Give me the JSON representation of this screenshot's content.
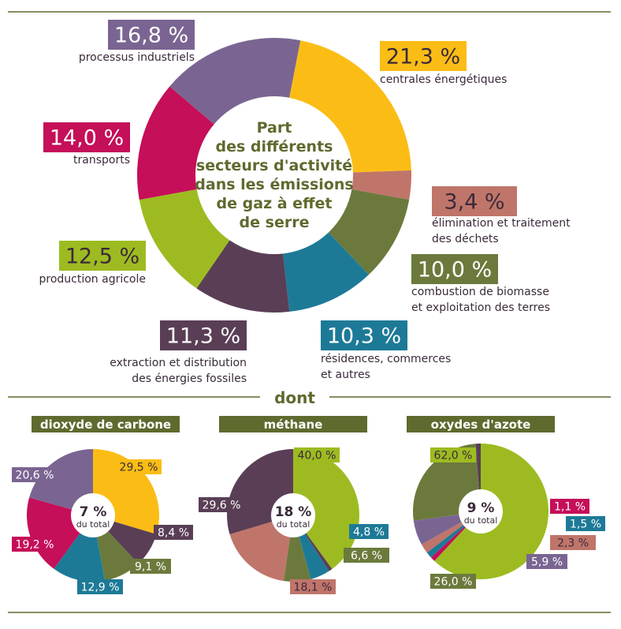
{
  "colors": {
    "industrial": "#7a6592",
    "power": "#fbbd15",
    "waste": "#c0756a",
    "biomass": "#6b7a3c",
    "residential": "#1d7a97",
    "fossil": "#5a3e56",
    "agri": "#9dbb21",
    "transport": "#c50f58",
    "dark": "#5a3e56",
    "olive_text": "#5e6a2e",
    "header_bg": "#5e6a2e",
    "rule": "#5e6a2e"
  },
  "dont_label": "dont",
  "chart_data": [
    {
      "type": "donut",
      "title": "Part des différents secteurs d'activité dans les émissions de gaz à effet de serre",
      "title_lines": [
        "Part",
        "des différents",
        "secteurs d'activité",
        "dans les émissions",
        "de gaz à effet",
        "de serre"
      ],
      "unit": "%",
      "slices": [
        {
          "key": "power",
          "value": 21.3,
          "pct": "21,3 %",
          "label_lines": [
            "centrales énergétiques"
          ],
          "color": "#fbbd15",
          "text_color": "#3a2a3a"
        },
        {
          "key": "waste",
          "value": 3.4,
          "pct": "3,4 %",
          "label_lines": [
            "élimination et traitement",
            "des déchets"
          ],
          "color": "#c0756a",
          "text_color": "#3a2a3a"
        },
        {
          "key": "biomass",
          "value": 10.0,
          "pct": "10,0 %",
          "label_lines": [
            "combustion de biomasse",
            "et exploitation des terres"
          ],
          "color": "#6b7a3c",
          "text_color": "#ffffff"
        },
        {
          "key": "residential",
          "value": 10.3,
          "pct": "10,3 %",
          "label_lines": [
            "résidences, commerces",
            "et autres"
          ],
          "color": "#1d7a97",
          "text_color": "#ffffff"
        },
        {
          "key": "fossil",
          "value": 11.3,
          "pct": "11,3 %",
          "label_lines": [
            "extraction et distribution",
            "des énergies fossiles"
          ],
          "color": "#5a3e56",
          "text_color": "#ffffff"
        },
        {
          "key": "agri",
          "value": 12.5,
          "pct": "12,5 %",
          "label_lines": [
            "production agricole"
          ],
          "color": "#9dbb21",
          "text_color": "#3a2a3a"
        },
        {
          "key": "transport",
          "value": 14.0,
          "pct": "14,0 %",
          "label_lines": [
            "transports"
          ],
          "color": "#c50f58",
          "text_color": "#ffffff"
        },
        {
          "key": "industrial",
          "value": 16.8,
          "pct": "16,8 %",
          "label_lines": [
            "processus industriels"
          ],
          "color": "#7a6592",
          "text_color": "#ffffff"
        }
      ]
    },
    {
      "type": "pie",
      "title": "dioxyde de carbone",
      "center_pct": "7 %",
      "center_sub": "du total",
      "slices": [
        {
          "value": 29.5,
          "pct": "29,5 %",
          "color": "#fbbd15",
          "text_color": "#3a2a3a"
        },
        {
          "value": 8.4,
          "pct": "8,4 %",
          "color": "#5a3e56",
          "text_color": "#ffffff"
        },
        {
          "value": 9.1,
          "pct": "9,1 %",
          "color": "#6b7a3c",
          "text_color": "#ffffff"
        },
        {
          "value": 12.9,
          "pct": "12,9 %",
          "color": "#1d7a97",
          "text_color": "#ffffff"
        },
        {
          "value": 19.2,
          "pct": "19,2 %",
          "color": "#c50f58",
          "text_color": "#ffffff"
        },
        {
          "value": 20.6,
          "pct": "20,6 %",
          "color": "#7a6592",
          "text_color": "#ffffff"
        }
      ]
    },
    {
      "type": "pie",
      "title": "méthane",
      "center_pct": "18 %",
      "center_sub": "du total",
      "slices": [
        {
          "value": 40.0,
          "pct": "40,0 %",
          "color": "#9dbb21",
          "text_color": "#3a2a3a"
        },
        {
          "value": 0.9,
          "pct": "",
          "color": "#5a3e56",
          "text_color": "#ffffff"
        },
        {
          "value": 4.8,
          "pct": "4,8 %",
          "color": "#1d7a97",
          "text_color": "#ffffff"
        },
        {
          "value": 6.6,
          "pct": "6,6 %",
          "color": "#6b7a3c",
          "text_color": "#ffffff"
        },
        {
          "value": 18.1,
          "pct": "18,1 %",
          "color": "#c0756a",
          "text_color": "#3a2a3a"
        },
        {
          "value": 29.6,
          "pct": "29,6 %",
          "color": "#5a3e56",
          "text_color": "#ffffff"
        }
      ]
    },
    {
      "type": "pie",
      "title": "oxydes d'azote",
      "center_pct": "9 %",
      "center_sub": "du total",
      "slices": [
        {
          "value": 62.0,
          "pct": "62,0 %",
          "color": "#9dbb21",
          "text_color": "#3a2a3a"
        },
        {
          "value": 1.1,
          "pct": "1,1 %",
          "color": "#c50f58",
          "text_color": "#ffffff"
        },
        {
          "value": 1.5,
          "pct": "1,5 %",
          "color": "#1d7a97",
          "text_color": "#ffffff"
        },
        {
          "value": 2.3,
          "pct": "2,3 %",
          "color": "#c0756a",
          "text_color": "#3a2a3a"
        },
        {
          "value": 5.9,
          "pct": "5,9 %",
          "color": "#7a6592",
          "text_color": "#ffffff"
        },
        {
          "value": 26.0,
          "pct": "26,0 %",
          "color": "#6b7a3c",
          "text_color": "#ffffff"
        },
        {
          "value": 1.2,
          "pct": "",
          "color": "#5a3e56",
          "text_color": "#ffffff"
        }
      ]
    }
  ]
}
